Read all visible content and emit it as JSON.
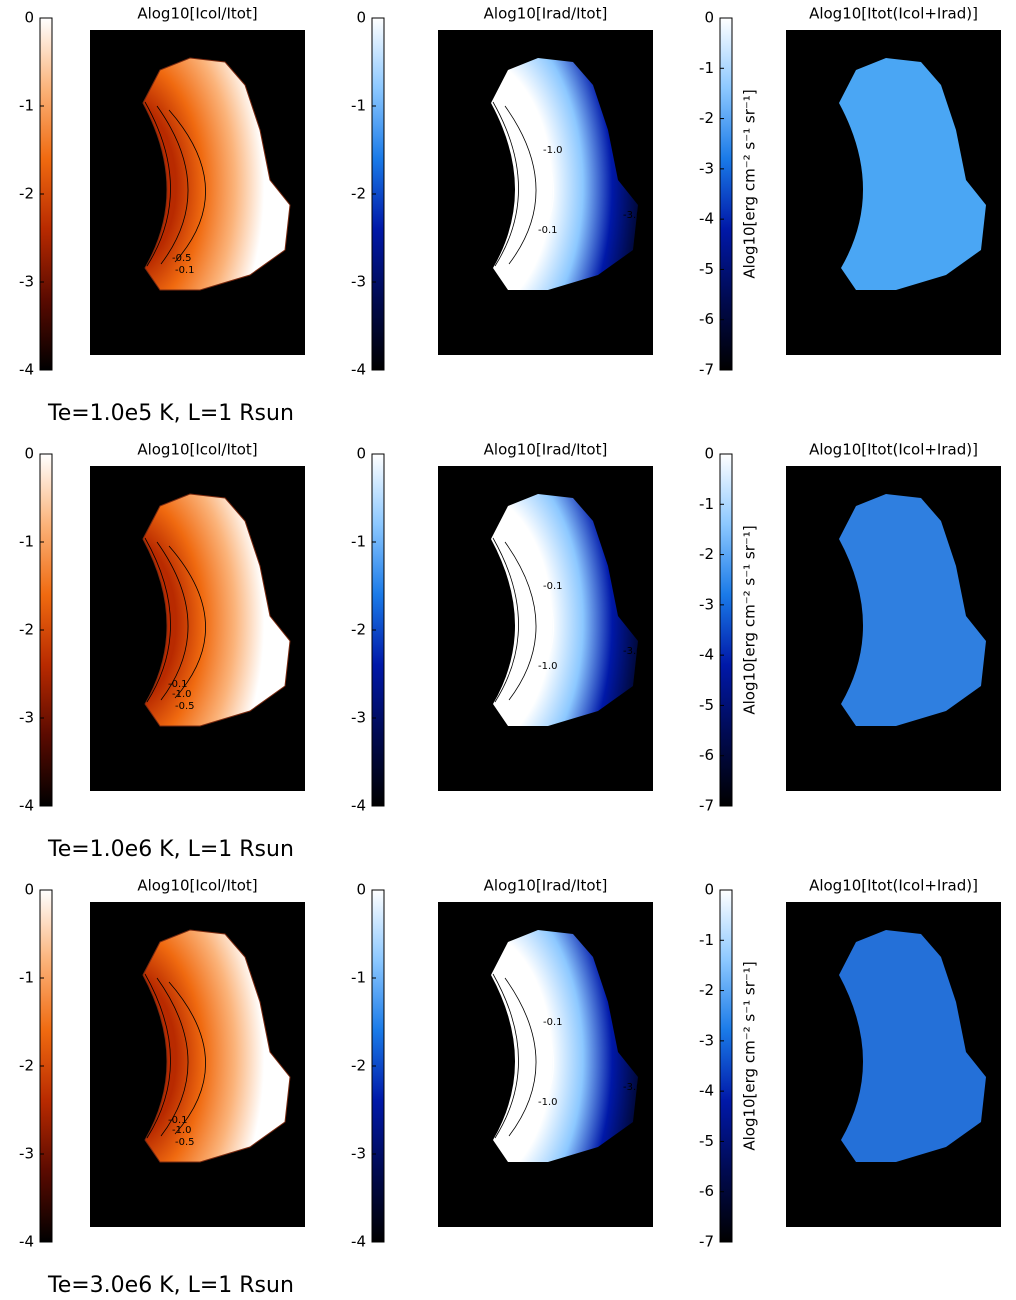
{
  "captions": [
    "Te=1.0e5 K, L=1 Rsun",
    "Te=1.0e6 K, L=1 Rsun",
    "Te=3.0e6 K, L=1 Rsun"
  ],
  "chart_data": [
    {
      "type": "ratio-map",
      "title": "Alog10[Icol/Itot]",
      "zlim": [
        -4,
        0
      ],
      "zticks": [
        0,
        -1,
        -2,
        -3,
        -4
      ],
      "colormap": [
        "#000000",
        "#5a0a00",
        "#b82a00",
        "#f06a10",
        "#fbb37a",
        "#ffffff"
      ],
      "contour_labels": [
        -0.5,
        -0.1
      ]
    },
    {
      "type": "ratio-map",
      "title": "Alog10[Irad/Itot]",
      "zlim": [
        -4,
        0
      ],
      "zticks": [
        0,
        -1,
        -2,
        -3,
        -4
      ],
      "colormap": [
        "#000000",
        "#000a50",
        "#0018a8",
        "#1a7ae8",
        "#8cc8ff",
        "#ffffff"
      ],
      "contour_labels": [
        {
          "value": -1,
          "label": "-1.0"
        },
        -0.1,
        {
          "value": -3,
          "label": "-3.0"
        }
      ]
    },
    {
      "type": "intensity-map",
      "title": "Alog10[Itot(Icol+Irad)]",
      "zlim": [
        -7,
        0
      ],
      "zticks": [
        0,
        -1,
        -2,
        -3,
        -4,
        -5,
        -6,
        -7
      ],
      "colorbar_label": "Alog10[erg cm⁻² s⁻¹ sr⁻¹]",
      "colormap": [
        "#000000",
        "#000a50",
        "#0018a8",
        "#1a7ae8",
        "#8cc8ff",
        "#ffffff"
      ],
      "image_color": "#4aa6f4"
    },
    {
      "type": "ratio-map",
      "title": "Alog10[Icol/Itot]",
      "zlim": [
        -4,
        0
      ],
      "zticks": [
        0,
        -1,
        -2,
        -3,
        -4
      ],
      "colormap": [
        "#000000",
        "#5a0a00",
        "#b82a00",
        "#f06a10",
        "#fbb37a",
        "#ffffff"
      ],
      "contour_labels": [
        {
          "value": -1,
          "label": "-1.0"
        },
        -0.5,
        -0.1
      ]
    },
    {
      "type": "ratio-map",
      "title": "Alog10[Irad/Itot]",
      "zlim": [
        -4,
        0
      ],
      "zticks": [
        0,
        -1,
        -2,
        -3,
        -4
      ],
      "colormap": [
        "#000000",
        "#000a50",
        "#0018a8",
        "#1a7ae8",
        "#8cc8ff",
        "#ffffff"
      ],
      "contour_labels": [
        {
          "value": -0.1,
          "label": "-0.1"
        },
        {
          "value": -1,
          "label": "-1.0"
        },
        {
          "value": -3,
          "label": "-3.0"
        }
      ]
    },
    {
      "type": "intensity-map",
      "title": "Alog10[Itot(Icol+Irad)]",
      "zlim": [
        -7,
        0
      ],
      "zticks": [
        0,
        -1,
        -2,
        -3,
        -4,
        -5,
        -6,
        -7
      ],
      "colorbar_label": "Alog10[erg cm⁻² s⁻¹ sr⁻¹]",
      "colormap": [
        "#000000",
        "#000a50",
        "#0018a8",
        "#1a7ae8",
        "#8cc8ff",
        "#ffffff"
      ],
      "image_color": "#2f7fe0"
    },
    {
      "type": "ratio-map",
      "title": "Alog10[Icol/Itot]",
      "zlim": [
        -4,
        0
      ],
      "zticks": [
        0,
        -1,
        -2,
        -3,
        -4
      ],
      "colormap": [
        "#000000",
        "#5a0a00",
        "#b82a00",
        "#f06a10",
        "#fbb37a",
        "#ffffff"
      ],
      "contour_labels": [
        {
          "value": -1,
          "label": "-1.0"
        },
        -0.5,
        -0.1
      ]
    },
    {
      "type": "ratio-map",
      "title": "Alog10[Irad/Itot]",
      "zlim": [
        -4,
        0
      ],
      "zticks": [
        0,
        -1,
        -2,
        -3,
        -4
      ],
      "colormap": [
        "#000000",
        "#000a50",
        "#0018a8",
        "#1a7ae8",
        "#8cc8ff",
        "#ffffff"
      ],
      "contour_labels": [
        -0.1,
        {
          "value": -1,
          "label": "-1.0"
        },
        {
          "value": -3,
          "label": "-3.0"
        }
      ]
    },
    {
      "type": "intensity-map",
      "title": "Alog10[Itot(Icol+Irad)]",
      "zlim": [
        -7,
        0
      ],
      "zticks": [
        0,
        -1,
        -2,
        -3,
        -4,
        -5,
        -6,
        -7
      ],
      "colorbar_label": "Alog10[erg cm⁻² s⁻¹ sr⁻¹]",
      "colormap": [
        "#000000",
        "#000a50",
        "#0018a8",
        "#1a7ae8",
        "#8cc8ff",
        "#ffffff"
      ],
      "image_color": "#2470d8"
    }
  ]
}
